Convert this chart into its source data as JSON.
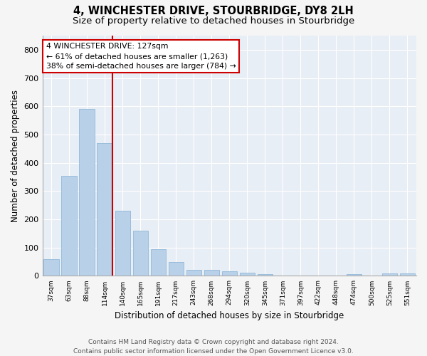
{
  "title": "4, WINCHESTER DRIVE, STOURBRIDGE, DY8 2LH",
  "subtitle": "Size of property relative to detached houses in Stourbridge",
  "xlabel": "Distribution of detached houses by size in Stourbridge",
  "ylabel": "Number of detached properties",
  "categories": [
    "37sqm",
    "63sqm",
    "88sqm",
    "114sqm",
    "140sqm",
    "165sqm",
    "191sqm",
    "217sqm",
    "243sqm",
    "268sqm",
    "294sqm",
    "320sqm",
    "345sqm",
    "371sqm",
    "397sqm",
    "422sqm",
    "448sqm",
    "474sqm",
    "500sqm",
    "525sqm",
    "551sqm"
  ],
  "values": [
    60,
    355,
    590,
    470,
    230,
    160,
    95,
    50,
    22,
    20,
    15,
    12,
    5,
    1,
    0,
    0,
    0,
    5,
    0,
    8,
    8
  ],
  "bar_color": "#b8d0e8",
  "bar_edge_color": "#92b8d8",
  "highlight_line_index": 3,
  "highlight_line_color": "#cc0000",
  "annotation_text": "4 WINCHESTER DRIVE: 127sqm\n← 61% of detached houses are smaller (1,263)\n38% of semi-detached houses are larger (784) →",
  "annotation_box_facecolor": "#ffffff",
  "annotation_box_edgecolor": "#cc0000",
  "ylim": [
    0,
    850
  ],
  "yticks": [
    0,
    100,
    200,
    300,
    400,
    500,
    600,
    700,
    800
  ],
  "plot_bg_color": "#e8eef5",
  "fig_bg_color": "#f5f5f5",
  "grid_color": "#ffffff",
  "footer": "Contains HM Land Registry data © Crown copyright and database right 2024.\nContains public sector information licensed under the Open Government Licence v3.0.",
  "title_fontsize": 10.5,
  "subtitle_fontsize": 9.5,
  "ylabel_fontsize": 8.5,
  "xlabel_fontsize": 8.5,
  "tick_fontsize": 8,
  "footer_fontsize": 6.5
}
